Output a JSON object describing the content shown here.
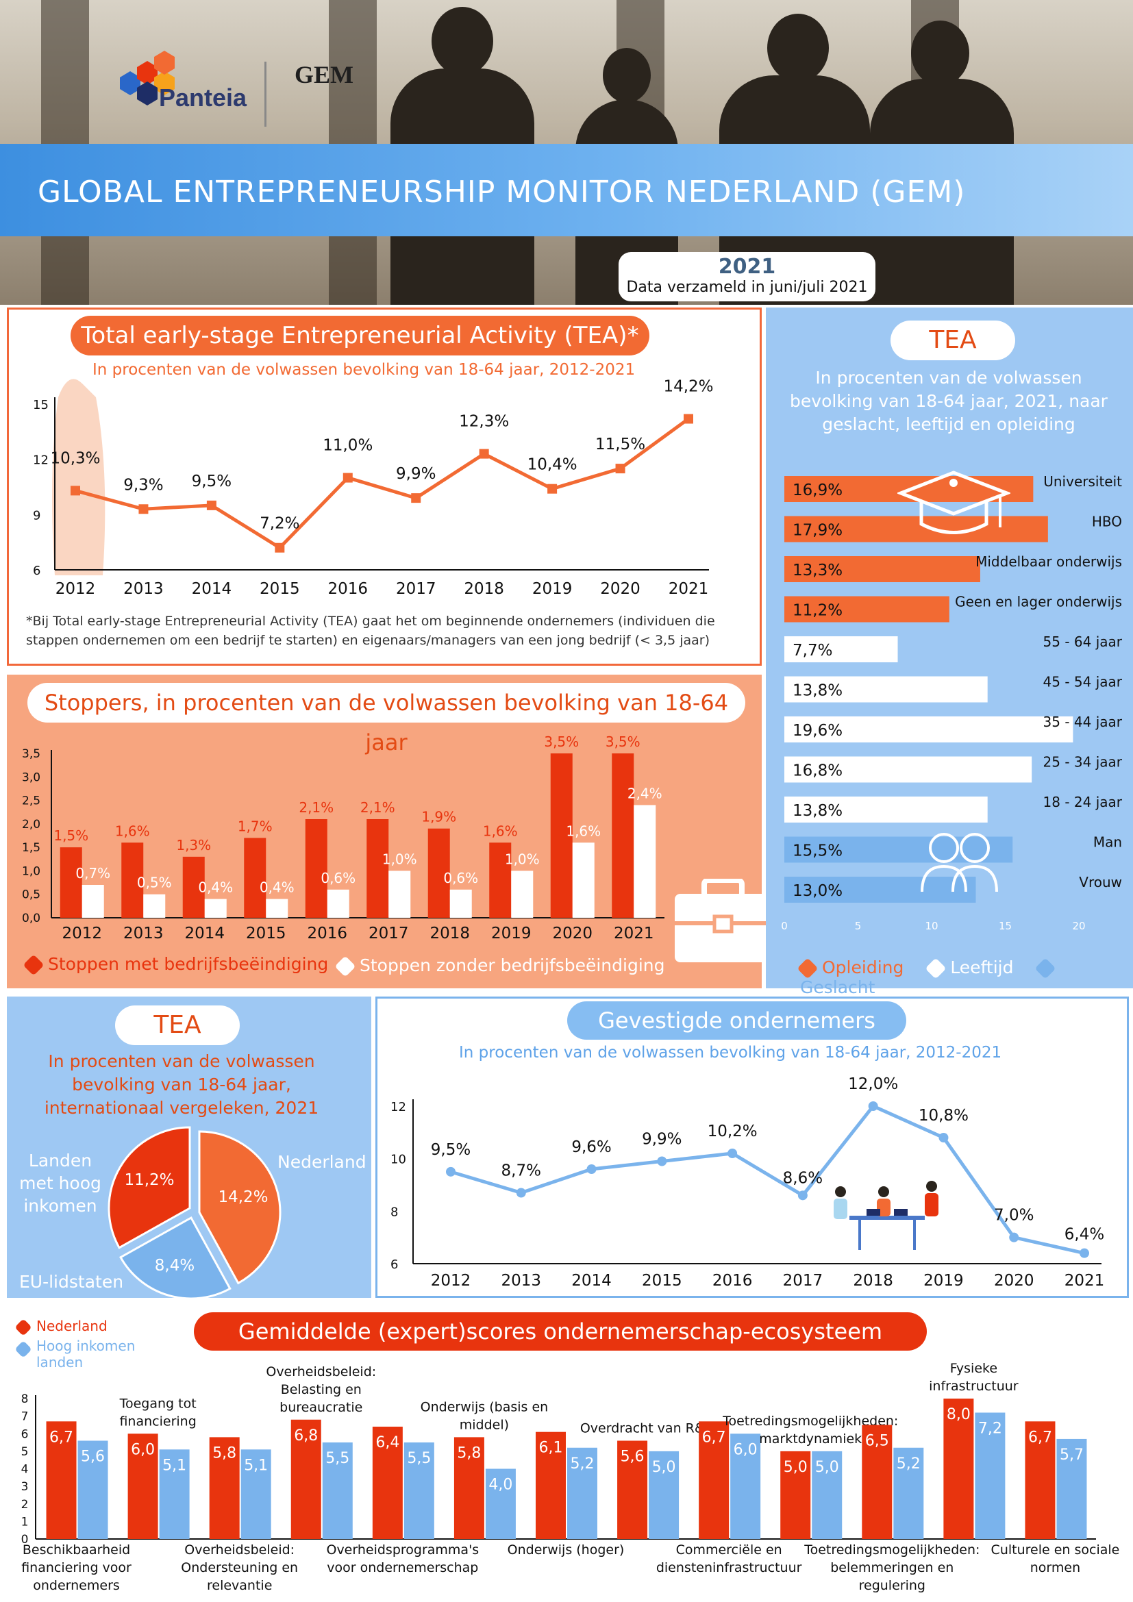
{
  "header": {
    "title": "GLOBAL ENTREPRENEURSHIP MONITOR NEDERLAND (GEM)",
    "year": "2021",
    "collected": "Data verzameld in juni/juli 2021",
    "logo_left": "Panteia",
    "logo_right": "GEM"
  },
  "tea": {
    "title": "Total early-stage Entrepreneurial Activity (TEA)*",
    "subtitle": "In procenten van de volwassen bevolking van 18-64 jaar, 2012-2021",
    "footnote": "*Bij Total early-stage Entrepreneurial Activity (TEA) gaat het om beginnende ondernemers (individuen die stappen ondernemen om een bedrijf te starten) en eigenaars/managers van een jong bedrijf (< 3,5 jaar)"
  },
  "stoppers": {
    "title": "Stoppers, in procenten van de volwassen bevolking van 18-64 jaar",
    "legend_a": "Stoppen met bedrijfsbeëindiging",
    "legend_b": "Stoppen zonder bedrijfsbeëindiging"
  },
  "gender": {
    "title": "TEA",
    "subtitle": "In procenten van de volwassen bevolking van 18-64 jaar, 2021, naar geslacht, leeftijd en opleiding",
    "legend": [
      "Opleiding",
      "Leeftijd",
      "Geslacht"
    ]
  },
  "intl": {
    "title": "TEA",
    "subtitle": "In procenten van de volwassen bevolking van 18-64 jaar, internationaal vergeleken, 2021"
  },
  "established": {
    "title": "Gevestigde ondernemers",
    "subtitle": "In procenten van de volwassen bevolking van 18-64 jaar, 2012-2021"
  },
  "ecosystem": {
    "title": "Gemiddelde (expert)scores ondernemerschap-ecosysteem",
    "legend_a": "Nederland",
    "legend_b": "Hoog inkomen landen"
  },
  "colors": {
    "orange": "#f26a33",
    "red": "#e8340e",
    "blue": "#7ab3ec",
    "lightblue": "#9ec8f3"
  },
  "chart_data": [
    {
      "id": "tea_trend",
      "type": "line",
      "x": [
        "2012",
        "2013",
        "2014",
        "2015",
        "2016",
        "2017",
        "2018",
        "2019",
        "2020",
        "2021"
      ],
      "values": [
        10.3,
        9.3,
        9.5,
        7.2,
        11.0,
        9.9,
        12.3,
        10.4,
        11.5,
        14.2
      ],
      "labels": [
        "10,3%",
        "9,3%",
        "9,5%",
        "7,2%",
        "11,0%",
        "9,9%",
        "12,3%",
        "10,4%",
        "11,5%",
        "14,2%"
      ],
      "yticks": [
        "6",
        "9",
        "12",
        "15"
      ],
      "ylim": [
        6,
        15
      ]
    },
    {
      "id": "stoppers",
      "type": "bar",
      "categories": [
        "2012",
        "2013",
        "2014",
        "2015",
        "2016",
        "2017",
        "2018",
        "2019",
        "2020",
        "2021"
      ],
      "series": [
        {
          "name": "Stoppen met bedrijfsbeëindiging",
          "values": [
            1.5,
            1.6,
            1.3,
            1.7,
            2.1,
            2.1,
            1.9,
            1.6,
            3.5,
            3.5
          ],
          "labels": [
            "1,5%",
            "1,6%",
            "1,3%",
            "1,7%",
            "2,1%",
            "2,1%",
            "1,9%",
            "1,6%",
            "3,5%",
            "3,5%"
          ]
        },
        {
          "name": "Stoppen zonder bedrijfsbeëindiging",
          "values": [
            0.7,
            0.5,
            0.4,
            0.4,
            0.6,
            1.0,
            0.6,
            1.0,
            1.6,
            2.4
          ],
          "labels": [
            "0,7%",
            "0,5%",
            "0,4%",
            "0,4%",
            "0,6%",
            "1,0%",
            "0,6%",
            "1,0%",
            "1,6%",
            "2,4%"
          ]
        }
      ],
      "yticks": [
        "0,0",
        "0,5",
        "1,0",
        "1,5",
        "2,0",
        "2,5",
        "3,0",
        "3,5"
      ],
      "ylim": [
        0,
        3.5
      ]
    },
    {
      "id": "tea_groups",
      "type": "bar",
      "orientation": "horizontal",
      "categories": [
        "Universiteit",
        "HBO",
        "Middelbaar onderwijs",
        "Geen en lager onderwijs",
        "55 - 64 jaar",
        "45 - 54 jaar",
        "35 - 44 jaar",
        "25 - 34 jaar",
        "18 - 24 jaar",
        "Man",
        "Vrouw"
      ],
      "values": [
        16.9,
        17.9,
        13.3,
        11.2,
        7.7,
        13.8,
        19.6,
        16.8,
        13.8,
        15.5,
        13.0
      ],
      "labels": [
        "16,9%",
        "17,9%",
        "13,3%",
        "11,2%",
        "7,7%",
        "13,8%",
        "19,6%",
        "16,8%",
        "13,8%",
        "15,5%",
        "13,0%"
      ],
      "groups": [
        "Opleiding",
        "Opleiding",
        "Opleiding",
        "Opleiding",
        "Leeftijd",
        "Leeftijd",
        "Leeftijd",
        "Leeftijd",
        "Leeftijd",
        "Geslacht",
        "Geslacht"
      ],
      "xticks": [
        "0",
        "5",
        "10",
        "15",
        "20"
      ],
      "xlim": [
        0,
        20
      ]
    },
    {
      "id": "intl_pie",
      "type": "pie",
      "categories": [
        "Nederland",
        "EU-lidstaten",
        "Landen met hoog inkomen"
      ],
      "values": [
        14.2,
        8.4,
        11.2
      ],
      "labels": [
        "14,2%",
        "8,4%",
        "11,2%"
      ]
    },
    {
      "id": "established",
      "type": "line",
      "x": [
        "2012",
        "2013",
        "2014",
        "2015",
        "2016",
        "2017",
        "2018",
        "2019",
        "2020",
        "2021"
      ],
      "values": [
        9.5,
        8.7,
        9.6,
        9.9,
        10.2,
        8.6,
        12.0,
        10.8,
        7.0,
        6.4
      ],
      "labels": [
        "9,5%",
        "8,7%",
        "9,6%",
        "9,9%",
        "10,2%",
        "8,6%",
        "12,0%",
        "10,8%",
        "7,0%",
        "6,4%"
      ],
      "yticks": [
        "6",
        "8",
        "10",
        "12"
      ],
      "ylim": [
        6,
        12
      ]
    },
    {
      "id": "ecosystem",
      "type": "bar",
      "categories": [
        "Beschikbaarheid financiering voor ondernemers",
        "Toegang tot financiering",
        "Overheidsbeleid: Ondersteuning en relevantie",
        "Overheidsbeleid: Belasting en bureaucratie",
        "Overheidsprogramma's voor ondernemerschap",
        "Onderwijs (basis en middel)",
        "Onderwijs (hoger)",
        "Overdracht van R&D",
        "Commerciële en diensteninfrastructuur",
        "Toetredingsmogelijkheden: marktdynamiek",
        "Toetredingsmogelijkheden: belemmeringen en regulering",
        "Fysieke infrastructuur",
        "Culturele en sociale normen"
      ],
      "series": [
        {
          "name": "Nederland",
          "values": [
            6.7,
            6.0,
            5.8,
            6.8,
            6.4,
            5.8,
            6.1,
            5.6,
            6.7,
            5.0,
            6.5,
            8.0,
            6.7
          ],
          "labels": [
            "6,7",
            "6,0",
            "5,8",
            "6,8",
            "6,4",
            "5,8",
            "6,1",
            "5,6",
            "6,7",
            "5,0",
            "6,5",
            "8,0",
            "6,7"
          ]
        },
        {
          "name": "Hoog inkomen landen",
          "values": [
            5.6,
            5.1,
            5.1,
            5.5,
            5.5,
            4.0,
            5.2,
            5.0,
            6.0,
            5.0,
            5.2,
            7.2,
            5.7
          ],
          "labels": [
            "5,6",
            "5,1",
            "5,1",
            "5,5",
            "5,5",
            "4,0",
            "5,2",
            "5,0",
            "6,0",
            "5,0",
            "5,2",
            "7,2",
            "5,7"
          ]
        }
      ],
      "yticks": [
        "0",
        "1",
        "2",
        "3",
        "4",
        "5",
        "6",
        "7",
        "8"
      ],
      "ylim": [
        0,
        8
      ]
    }
  ]
}
